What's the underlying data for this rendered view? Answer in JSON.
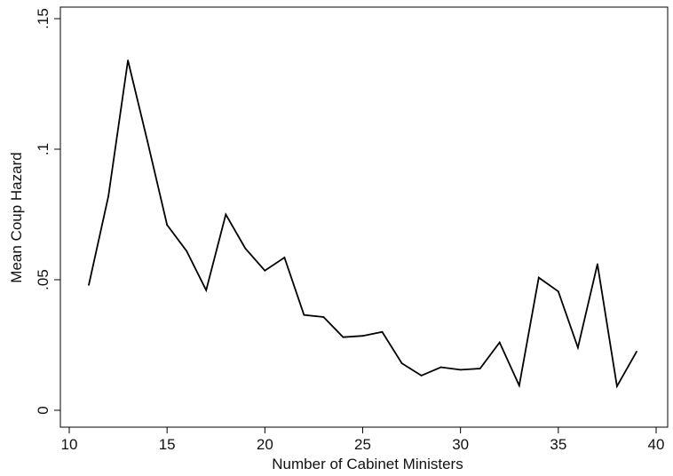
{
  "chart_data": {
    "type": "line",
    "title": "",
    "xlabel": "Number of Cabinet Ministers",
    "ylabel": "Mean Coup Hazard",
    "xlim": [
      10,
      40
    ],
    "ylim": [
      0,
      0.15
    ],
    "x_ticks": [
      10,
      15,
      20,
      25,
      30,
      35,
      40
    ],
    "x_tick_labels": [
      "10",
      "15",
      "20",
      "25",
      "30",
      "35",
      "40"
    ],
    "y_ticks": [
      0,
      0.05,
      0.1,
      0.15
    ],
    "y_tick_labels": [
      "0",
      ".05",
      ".1",
      ".15"
    ],
    "grid": false,
    "series": [
      {
        "x": [
          11,
          12,
          13,
          14,
          15,
          16,
          17,
          18,
          19,
          20,
          21,
          22,
          23,
          24,
          25,
          26,
          27,
          28,
          29,
          30,
          31,
          32,
          33,
          34,
          35,
          36,
          37,
          38,
          39
        ],
        "values": [
          0.048,
          0.082,
          0.134,
          0.103,
          0.071,
          0.061,
          0.046,
          0.075,
          0.062,
          0.0535,
          0.0585,
          0.0365,
          0.0357,
          0.028,
          0.0285,
          0.03,
          0.018,
          0.0133,
          0.0165,
          0.0155,
          0.016,
          0.026,
          0.0095,
          0.0508,
          0.0455,
          0.024,
          0.056,
          0.0092,
          0.0225
        ]
      }
    ]
  }
}
